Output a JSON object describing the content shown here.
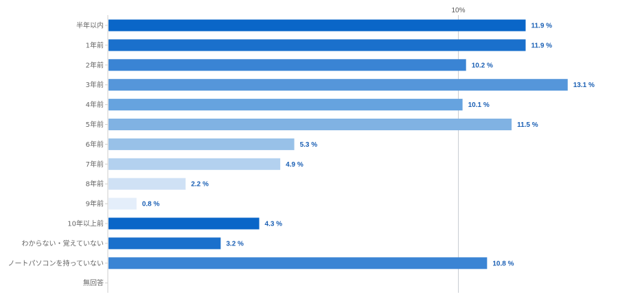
{
  "chart_data": {
    "type": "bar",
    "orientation": "horizontal",
    "categories": [
      "半年以内",
      "1年前",
      "2年前",
      "3年前",
      "4年前",
      "5年前",
      "6年前",
      "7年前",
      "8年前",
      "9年前",
      "10年以上前",
      "わからない・覚えていない",
      "ノートパソコンを持っていない",
      "無回答"
    ],
    "values": [
      11.9,
      11.9,
      10.2,
      13.1,
      10.1,
      11.5,
      5.3,
      4.9,
      2.2,
      0.8,
      4.3,
      3.2,
      10.8,
      null
    ],
    "value_labels": [
      "11.9 %",
      "11.9 %",
      "10.2 %",
      "13.1 %",
      "10.1 %",
      "11.5 %",
      "5.3 %",
      "4.9 %",
      "2.2 %",
      "0.8 %",
      "4.3 %",
      "3.2 %",
      "10.8 %",
      ""
    ],
    "bar_colors": [
      "#0a66c8",
      "#1a70cc",
      "#3a84d4",
      "#5596da",
      "#66a3df",
      "#80b2e3",
      "#98c1e8",
      "#b3d1ef",
      "#cfe1f5",
      "#e4eefa",
      "#0a66c8",
      "#1a70cc",
      "#3a84d4",
      "#5596da"
    ],
    "x_ticks": [
      {
        "value": 10,
        "label": "10%"
      }
    ],
    "xlim": [
      0,
      13.5
    ],
    "grid": true,
    "label_color": "#1a5fb4"
  }
}
